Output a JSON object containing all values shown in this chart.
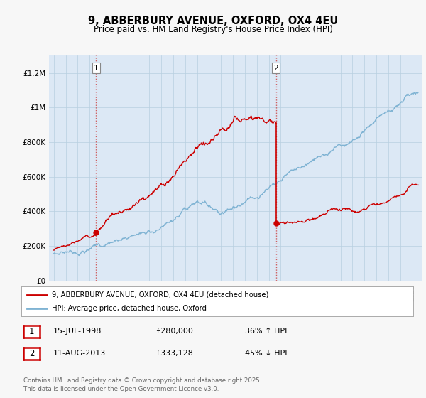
{
  "title": "9, ABBERBURY AVENUE, OXFORD, OX4 4EU",
  "subtitle": "Price paid vs. HM Land Registry's House Price Index (HPI)",
  "ylim": [
    0,
    1300000
  ],
  "yticks": [
    0,
    200000,
    400000,
    600000,
    800000,
    1000000,
    1200000
  ],
  "ytick_labels": [
    "£0",
    "£200K",
    "£400K",
    "£600K",
    "£800K",
    "£1M",
    "£1.2M"
  ],
  "bg_color": "#f7f7f7",
  "plot_bg_color": "#dce8f5",
  "red_color": "#cc0000",
  "blue_color": "#7fb3d3",
  "t1": 1998.54,
  "t1_price": 280000,
  "t2": 2013.61,
  "t2_price": 333128,
  "legend_line1": "9, ABBERBURY AVENUE, OXFORD, OX4 4EU (detached house)",
  "legend_line2": "HPI: Average price, detached house, Oxford",
  "note1_date": "15-JUL-1998",
  "note1_price": "£280,000",
  "note1_change": "36% ↑ HPI",
  "note2_date": "11-AUG-2013",
  "note2_price": "£333,128",
  "note2_change": "45% ↓ HPI",
  "footer": "Contains HM Land Registry data © Crown copyright and database right 2025.\nThis data is licensed under the Open Government Licence v3.0."
}
